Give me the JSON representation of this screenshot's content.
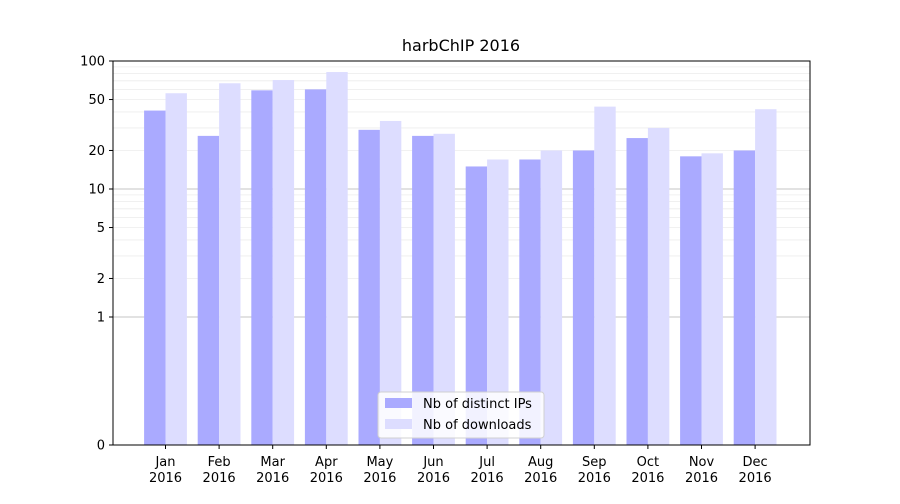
{
  "chart_data": {
    "type": "bar",
    "title": "harbChIP 2016",
    "xlabel": "",
    "ylabel": "",
    "y_scale": "symlog",
    "ylim": [
      0,
      100
    ],
    "y_ticks": [
      0,
      1,
      2,
      5,
      10,
      20,
      50,
      100
    ],
    "y_tick_labels": [
      "0",
      "1",
      "2",
      "5",
      "10",
      "20",
      "50",
      "100"
    ],
    "categories": [
      [
        "Jan",
        "2016"
      ],
      [
        "Feb",
        "2016"
      ],
      [
        "Mar",
        "2016"
      ],
      [
        "Apr",
        "2016"
      ],
      [
        "May",
        "2016"
      ],
      [
        "Jun",
        "2016"
      ],
      [
        "Jul",
        "2016"
      ],
      [
        "Aug",
        "2016"
      ],
      [
        "Sep",
        "2016"
      ],
      [
        "Oct",
        "2016"
      ],
      [
        "Nov",
        "2016"
      ],
      [
        "Dec",
        "2016"
      ]
    ],
    "series": [
      {
        "name": "Nb of distinct IPs",
        "color": "#aaaaff",
        "values": [
          41,
          26,
          59,
          60,
          29,
          26,
          15,
          17,
          20,
          25,
          18,
          20
        ]
      },
      {
        "name": "Nb of downloads",
        "color": "#ddddff",
        "values": [
          56,
          67,
          71,
          82,
          34,
          27,
          17,
          20,
          44,
          30,
          19,
          42
        ]
      }
    ],
    "grid": true,
    "legend_position": "bottom-center"
  }
}
